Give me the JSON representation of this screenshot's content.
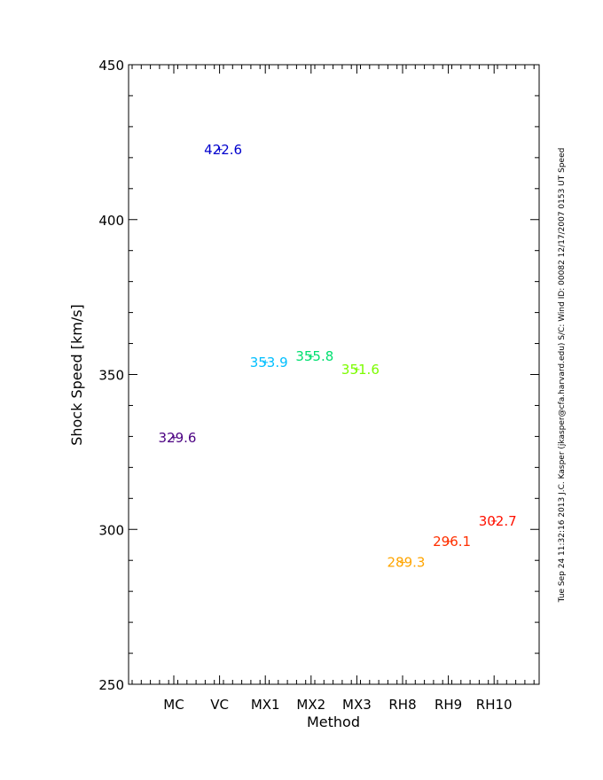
{
  "chart_data": {
    "type": "scatter",
    "title": "",
    "xlabel": "Method",
    "ylabel": "Shock Speed [km/s]",
    "ylim": [
      250,
      450
    ],
    "y_ticks": [
      250,
      300,
      350,
      400,
      450
    ],
    "grid": false,
    "categories": [
      "MC",
      "VC",
      "MX1",
      "MX2",
      "MX3",
      "RH8",
      "RH9",
      "RH10"
    ],
    "values": [
      329.6,
      422.6,
      353.9,
      355.8,
      351.6,
      289.3,
      296.1,
      302.7
    ],
    "labels": [
      "329.6",
      "422.6",
      "353.9",
      "355.8",
      "351.6",
      "289.3",
      "296.1",
      "302.7"
    ],
    "colors": [
      "#4b0082",
      "#0000cd",
      "#00bfff",
      "#00e070",
      "#7cfc00",
      "#ffa500",
      "#ff3000",
      "#ff1000"
    ]
  },
  "side_note": "Tue Sep 24 11:32:16 2013   J.C. Kasper (jkasper@cfa.harvard.edu)   S/C: Wind  ID: 00082 12/17/2007   0153 UT Speed"
}
